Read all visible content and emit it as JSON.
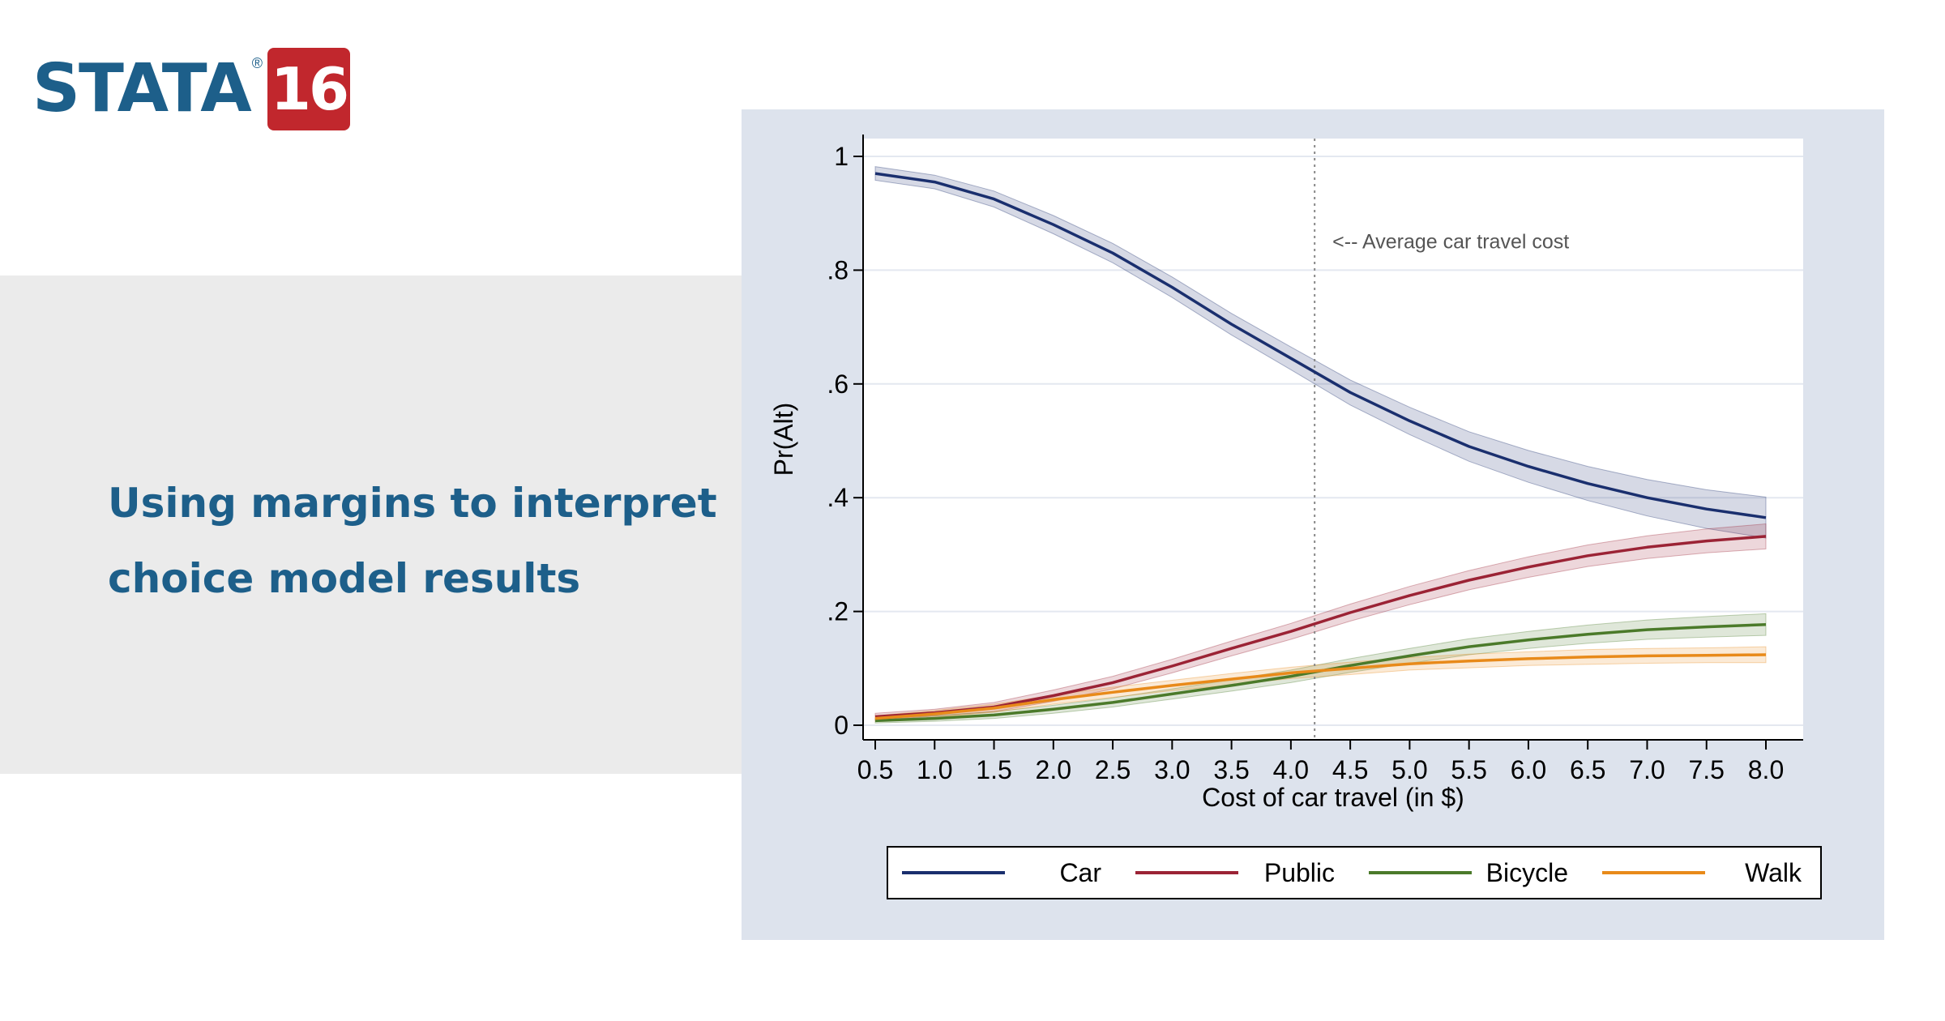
{
  "logo": {
    "wordmark": "STATA",
    "registered": "®",
    "version": "16"
  },
  "headline": {
    "line1": "Using margins to interpret",
    "line2": "choice model results"
  },
  "colors": {
    "brand_blue": "#1d5f8a",
    "brand_red": "#c1272d",
    "panel_bg": "#dde3ed",
    "car": "#1a2f6e",
    "public": "#9b2335",
    "bicycle": "#4b7a2a",
    "walk": "#e88a1a"
  },
  "chart_data": {
    "type": "line",
    "xlabel": "Cost of car travel (in $)",
    "ylabel": "Pr(Alt)",
    "xlim": [
      0.5,
      8.0
    ],
    "ylim": [
      0,
      1
    ],
    "x_ticks": [
      "0.5",
      "1.0",
      "1.5",
      "2.0",
      "2.5",
      "3.0",
      "3.5",
      "4.0",
      "4.5",
      "5.0",
      "5.5",
      "6.0",
      "6.5",
      "7.0",
      "7.5",
      "8.0"
    ],
    "y_ticks": [
      {
        "value": 0,
        "label": "0"
      },
      {
        "value": 0.2,
        "label": ".2"
      },
      {
        "value": 0.4,
        "label": ".4"
      },
      {
        "value": 0.6,
        "label": ".6"
      },
      {
        "value": 0.8,
        "label": ".8"
      },
      {
        "value": 1,
        "label": "1"
      }
    ],
    "grid": true,
    "legend_position": "bottom",
    "x": [
      0.5,
      1.0,
      1.5,
      2.0,
      2.5,
      3.0,
      3.5,
      4.0,
      4.5,
      5.0,
      5.5,
      6.0,
      6.5,
      7.0,
      7.5,
      8.0
    ],
    "series": [
      {
        "name": "Car",
        "color": "#1a2f6e",
        "values": [
          0.97,
          0.955,
          0.925,
          0.88,
          0.83,
          0.77,
          0.705,
          0.645,
          0.585,
          0.535,
          0.49,
          0.455,
          0.425,
          0.4,
          0.38,
          0.365
        ],
        "ci": [
          0.012,
          0.012,
          0.014,
          0.016,
          0.017,
          0.018,
          0.019,
          0.02,
          0.022,
          0.024,
          0.026,
          0.028,
          0.03,
          0.032,
          0.034,
          0.036
        ]
      },
      {
        "name": "Public",
        "color": "#9b2335",
        "values": [
          0.015,
          0.022,
          0.032,
          0.052,
          0.075,
          0.104,
          0.135,
          0.165,
          0.198,
          0.228,
          0.255,
          0.278,
          0.298,
          0.313,
          0.324,
          0.332
        ],
        "ci": [
          0.006,
          0.006,
          0.008,
          0.01,
          0.011,
          0.012,
          0.013,
          0.014,
          0.015,
          0.016,
          0.017,
          0.018,
          0.019,
          0.02,
          0.021,
          0.022
        ]
      },
      {
        "name": "Bicycle",
        "color": "#4b7a2a",
        "values": [
          0.008,
          0.012,
          0.018,
          0.028,
          0.04,
          0.055,
          0.07,
          0.086,
          0.105,
          0.122,
          0.138,
          0.15,
          0.16,
          0.168,
          0.173,
          0.177
        ],
        "ci": [
          0.004,
          0.005,
          0.006,
          0.007,
          0.008,
          0.009,
          0.01,
          0.011,
          0.012,
          0.013,
          0.014,
          0.015,
          0.016,
          0.017,
          0.018,
          0.019
        ]
      },
      {
        "name": "Walk",
        "color": "#e88a1a",
        "values": [
          0.012,
          0.02,
          0.03,
          0.045,
          0.058,
          0.07,
          0.081,
          0.092,
          0.1,
          0.108,
          0.113,
          0.117,
          0.12,
          0.122,
          0.123,
          0.124
        ],
        "ci": [
          0.005,
          0.006,
          0.007,
          0.008,
          0.009,
          0.009,
          0.01,
          0.01,
          0.011,
          0.011,
          0.012,
          0.012,
          0.013,
          0.013,
          0.013,
          0.014
        ]
      }
    ],
    "reference_line": {
      "x": 4.2,
      "label": "<-- Average car travel cost",
      "label_y": 0.85
    }
  }
}
